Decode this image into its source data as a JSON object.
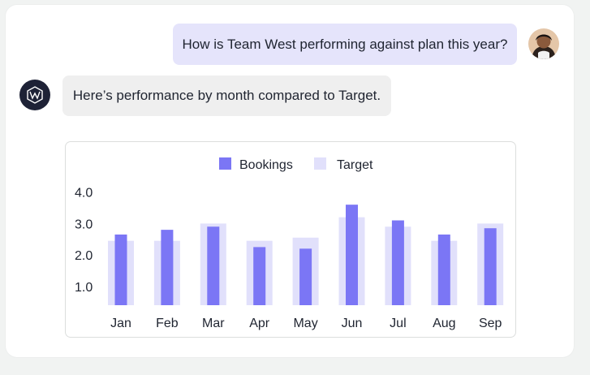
{
  "chat": {
    "user_message": "How is Team West performing against plan this year?",
    "assistant_message": "Here’s performance by month compared to Target."
  },
  "icons": {
    "user_avatar": "user-avatar-photo",
    "assistant_logo": "assistant-logo-icon"
  },
  "colors": {
    "bookings": "#7b76f5",
    "target": "#e1e0fb"
  },
  "chart_data": {
    "type": "bar",
    "categories": [
      "Jan",
      "Feb",
      "Mar",
      "Apr",
      "May",
      "Jun",
      "Jul",
      "Aug",
      "Sep"
    ],
    "series": [
      {
        "name": "Bookings",
        "values": [
          2.65,
          2.8,
          2.9,
          2.25,
          2.2,
          3.6,
          3.1,
          2.65,
          2.85
        ]
      },
      {
        "name": "Target",
        "values": [
          2.45,
          2.45,
          3.0,
          2.45,
          2.55,
          3.2,
          2.9,
          2.45,
          3.0
        ]
      }
    ],
    "yticks": [
      "1.0",
      "2.0",
      "3.0",
      "4.0"
    ],
    "ylim": [
      0.4,
      4.0
    ],
    "legend_placement": "top-center",
    "grid": false,
    "title": "",
    "xlabel": "",
    "ylabel": ""
  }
}
